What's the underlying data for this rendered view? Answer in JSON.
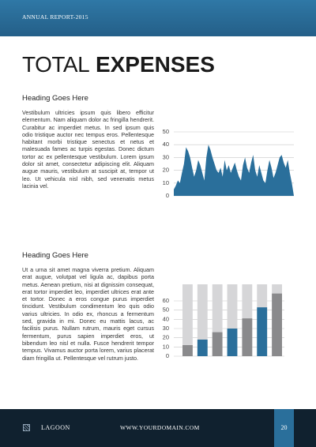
{
  "header": {
    "label": "ANNUAL REPORT-2015"
  },
  "title": {
    "light": "TOTAL",
    "bold": "EXPENSES"
  },
  "sections": [
    {
      "heading": "Heading Goes Here",
      "text": "Vestibulum ultricies ipsum quis libero efficitur elementum. Nam aliquam dolor ac fringilla hendrerit. Curabitur ac imperdiet metus. In sed ipsum quis odio tristique auctor nec tempus eros. Pellentesque habitant morbi tristique senectus et netus et malesuada fames ac turpis egestas. Donec dictum tortor ac ex pellentesque vestibulum. Lorem ipsum dolor sit amet, consectetur adipiscing elit. Aliquam augue mauris, vestibulum at suscipit at, tempor ut leo. Ut vehicula nisl nibh, sed venenatis metus lacinia vel.",
      "chart_data": {
        "type": "area",
        "color": "#2a6f9b",
        "values": [
          5,
          8,
          12,
          10,
          18,
          25,
          38,
          35,
          30,
          22,
          15,
          20,
          28,
          24,
          18,
          12,
          30,
          40,
          36,
          30,
          25,
          20,
          18,
          22,
          15,
          28,
          20,
          24,
          18,
          22,
          26,
          20,
          15,
          12,
          24,
          30,
          22,
          18,
          26,
          32,
          20,
          15,
          24,
          18,
          12,
          10,
          20,
          28,
          22,
          14,
          18,
          24,
          30,
          32,
          26,
          22,
          28,
          18,
          10,
          0
        ],
        "ylim": [
          0,
          50
        ],
        "yticks": [
          0,
          10,
          20,
          30,
          40,
          50
        ],
        "grid": true
      }
    },
    {
      "heading": "Heading Goes Here",
      "text": "Ut a urna sit amet magna viverra pretium. Aliquam erat augue, volutpat vel ligula ac, dapibus porta metus. Aenean pretium, nisi at dignissim consequat, erat tortor imperdiet leo, imperdiet ultrices erat ante et tortor. Donec a eros congue purus imperdiet tincidunt. Vestibulum condimentum leo quis odio varius ultricies. In odio ex, rhoncus a fermentum sed, gravida in mi. Donec eu mattis lacus, ac facilisis purus. Nullam rutrum, mauris eget cursus fermentum, purus sapien imperdiet eros, ut bibendum leo nisl et nulla. Fusce hendrerit tempor tempus. Vivamus auctor porta lorem, varius placerat diam fringilla ut. Pellentesque vel rutrum justo.",
      "chart_data": {
        "type": "bar",
        "values": [
          12,
          18,
          26,
          30,
          41,
          53,
          68
        ],
        "colors": [
          "#8a8a8c",
          "#2a6f9b",
          "#8a8a8c",
          "#2a6f9b",
          "#8a8a8c",
          "#2a6f9b",
          "#8a8a8c"
        ],
        "background_color": "#d6d6d8",
        "ylim": [
          0,
          78
        ],
        "yticks": [
          0,
          10,
          20,
          30,
          40,
          50,
          60
        ],
        "grid": true
      }
    }
  ],
  "footer": {
    "brand": "LAGOON",
    "website": "WWW.YOURDOMAIN.COM",
    "page": 20
  }
}
